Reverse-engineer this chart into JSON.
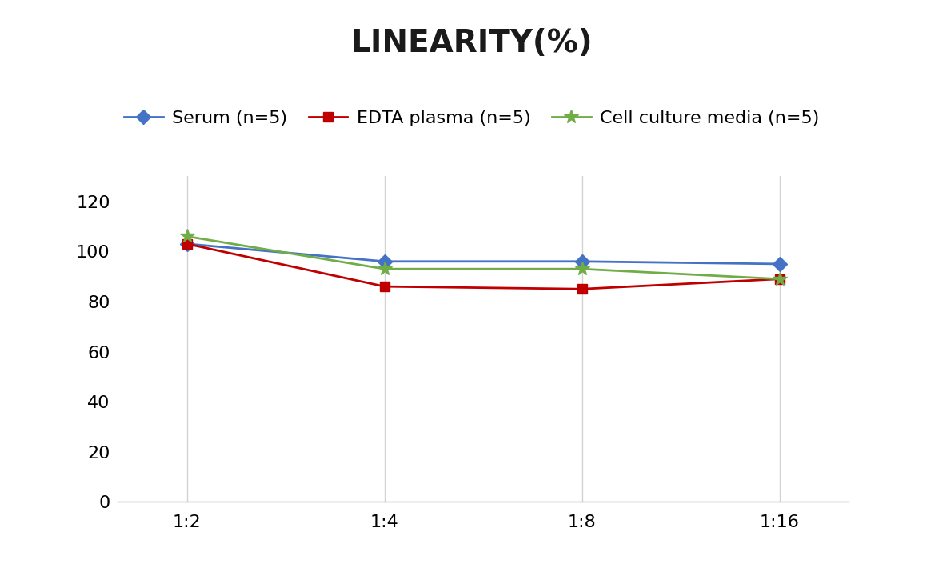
{
  "title": "LINEARITY(%)",
  "x_labels": [
    "1:2",
    "1:4",
    "1:8",
    "1:16"
  ],
  "x_positions": [
    0,
    1,
    2,
    3
  ],
  "series": [
    {
      "label": "Serum (n=5)",
      "values": [
        103,
        96,
        96,
        95
      ],
      "color": "#4472C4",
      "marker": "D",
      "linewidth": 2.0,
      "markersize": 9
    },
    {
      "label": "EDTA plasma (n=5)",
      "values": [
        103,
        86,
        85,
        89
      ],
      "color": "#C00000",
      "marker": "s",
      "linewidth": 2.0,
      "markersize": 9
    },
    {
      "label": "Cell culture media (n=5)",
      "values": [
        106,
        93,
        93,
        89
      ],
      "color": "#70AD47",
      "marker": "*",
      "linewidth": 2.0,
      "markersize": 13
    }
  ],
  "ylim": [
    0,
    130
  ],
  "yticks": [
    0,
    20,
    40,
    60,
    80,
    100,
    120
  ],
  "title_fontsize": 28,
  "tick_fontsize": 16,
  "legend_fontsize": 16,
  "background_color": "#FFFFFF",
  "grid_color": "#D3D3D3",
  "legend_ncol": 3
}
